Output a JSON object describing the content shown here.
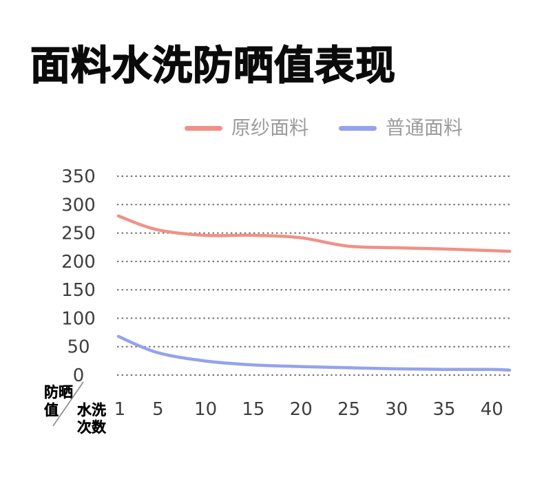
{
  "page": {
    "title": "面料水洗防晒值表现",
    "background": "#ffffff"
  },
  "chart_data": {
    "type": "line",
    "title": "面料水洗防晒值表现",
    "smooth": true,
    "grid": "horizontal-dotted",
    "grid_color": "#6b6b6b",
    "legend_position": "top",
    "x": [
      1,
      5,
      10,
      15,
      20,
      25,
      30,
      35,
      40
    ],
    "xticks": [
      1,
      5,
      10,
      15,
      20,
      25,
      30,
      35,
      40
    ],
    "xlim": [
      1,
      42
    ],
    "ylim": [
      0,
      350
    ],
    "yticks": [
      0,
      50,
      100,
      150,
      200,
      250,
      300,
      350
    ],
    "xlabel": "水洗次数",
    "ylabel": "防晒值",
    "xlabel_lines": [
      "水洗",
      "次数"
    ],
    "ylabel_lines": [
      "防晒",
      "值"
    ],
    "tick_label_color": "#3e3e3e",
    "series": [
      {
        "id": "raw-yarn-fabric",
        "name": "原纱面料",
        "color": "#F09187",
        "values": [
          280,
          256,
          246,
          246,
          242,
          227,
          224,
          222,
          219
        ]
      },
      {
        "id": "ordinary-fabric",
        "name": "普通面料",
        "color": "#94A3EC",
        "values": [
          68,
          40,
          25,
          18,
          15,
          13,
          11,
          10,
          10
        ]
      }
    ]
  }
}
